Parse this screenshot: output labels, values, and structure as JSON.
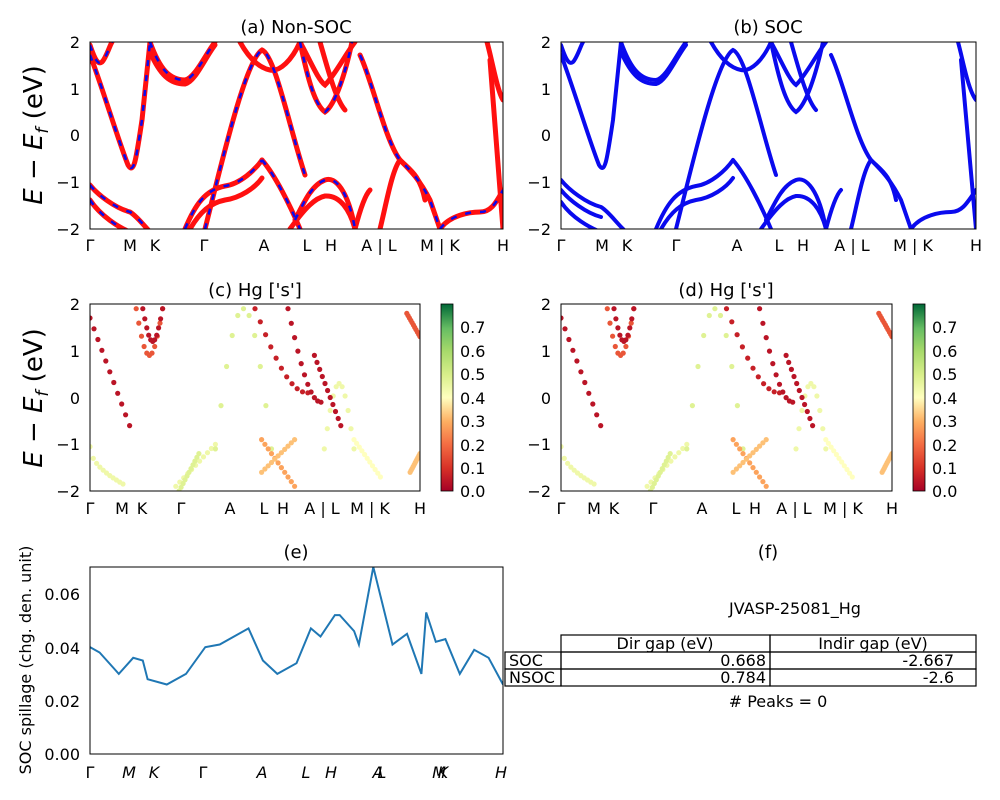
{
  "figure_id": "JVASP-25081_Hg",
  "ylabel_bands": "E − E",
  "ylabel_bands_sub": "f",
  "ylabel_bands_unit": " (eV)",
  "ylabel_spillage": "SOC spillage (chg. den. unit)",
  "kpath_labels": [
    "Γ",
    "M",
    "K",
    "Γ",
    "A",
    "L",
    "H",
    "A | L",
    "M | K",
    "H"
  ],
  "kpath_labels_spill": [
    "Γ",
    "M",
    "K",
    "Γ",
    "A",
    "L",
    "H",
    "A",
    "L",
    "M",
    "K",
    "H"
  ],
  "colorbar_ticks": [
    "0.0",
    "0.1",
    "0.2",
    "0.3",
    "0.4",
    "0.5",
    "0.6",
    "0.7"
  ],
  "colors": {
    "bands_blue": "#0a0aee",
    "bands_red": "#ff1010",
    "spill_line": "#1f77b4"
  },
  "table": {
    "headers": [
      "Dir gap (eV)",
      "Indir gap (eV)"
    ],
    "rows": [
      {
        "label": "SOC",
        "dir": "0.668",
        "indir": "-2.667"
      },
      {
        "label": "NSOC",
        "dir": "0.784",
        "indir": "-2.6"
      }
    ],
    "peaks": "# Peaks = 0"
  },
  "chart_data": [
    {
      "type": "line",
      "title": "(a) Non-SOC",
      "ylabel": "E − E_f (eV)",
      "ylim": [
        -2,
        2
      ],
      "yticks": [
        -2,
        -1,
        0,
        1,
        2
      ],
      "legend": "none",
      "series": [
        {
          "x": [
            0,
            0.4,
            1.0,
            1.3
          ],
          "y": [
            1.9,
            0.8,
            -0.7,
            0.2
          ]
        },
        {
          "x": [
            0,
            0.2,
            0.5,
            1.0,
            1.2,
            1.6,
            2.0,
            2.6,
            3.0
          ],
          "y": [
            -0.9,
            -1.2,
            -1.6,
            -1.8,
            -1.8,
            -2.1,
            -2.0,
            -1.3,
            -1.0
          ]
        },
        {
          "x": [
            2.6,
            3.0,
            3.7,
            4.2,
            4.8,
            5.3
          ],
          "y": [
            -1.4,
            -1.35,
            -1.1,
            -0.8,
            -1.6,
            -2.1
          ]
        },
        {
          "x": [
            3.5,
            4.2,
            4.6,
            5.3,
            5.7
          ],
          "y": [
            -1.0,
            1.9,
            1.0,
            -0.4,
            -1.4
          ]
        },
        {
          "x": [
            5.7,
            6.0,
            6.3,
            6.7
          ],
          "y": [
            -1.1,
            -0.95,
            -0.9,
            -1.05
          ]
        },
        {
          "x": [
            7.0,
            7.4,
            7.8,
            8.2
          ],
          "y": [
            -0.7,
            -0.6,
            -0.8,
            -1.2
          ]
        }
      ]
    },
    {
      "type": "line",
      "title": "(b) SOC",
      "ylim": [
        -2,
        2
      ],
      "yticks": [
        -2,
        -1,
        0,
        1,
        2
      ],
      "legend": "none",
      "series": [
        {
          "x": [
            0,
            0.4,
            1.0,
            1.3
          ],
          "y": [
            1.8,
            0.7,
            -0.8,
            0.2
          ]
        },
        {
          "x": [
            0,
            0.2,
            0.5,
            1.0,
            1.2,
            1.6,
            2.0,
            2.6,
            3.0
          ],
          "y": [
            -0.95,
            -1.3,
            -1.7,
            -1.8,
            -1.85,
            -2.1,
            -2.0,
            -1.3,
            -1.0
          ]
        },
        {
          "x": [
            3.5,
            4.2,
            4.6,
            5.3,
            5.7
          ],
          "y": [
            -1.0,
            1.9,
            1.0,
            -0.4,
            -1.4
          ]
        },
        {
          "x": [
            5.7,
            6.0,
            6.3,
            6.7
          ],
          "y": [
            -1.1,
            -0.95,
            -0.9,
            -1.05
          ]
        }
      ]
    },
    {
      "type": "scatter",
      "title": "(c)  Hg ['s']",
      "ylim": [
        -2,
        2
      ],
      "yticks": [
        -2,
        -1,
        0,
        1,
        2
      ],
      "colorbar_range": [
        0.0,
        0.78
      ],
      "series": [
        {
          "x": [
            0.1,
            0.4,
            0.8,
            1.1
          ],
          "y": [
            1.5,
            0.5,
            -0.6,
            -0.7
          ],
          "c": [
            0.05,
            0.05,
            0.05,
            0.05
          ]
        },
        {
          "x": [
            0.0,
            0.3,
            0.6,
            0.9
          ],
          "y": [
            -1.1,
            -1.5,
            -1.7,
            -1.75
          ],
          "c": [
            0.55,
            0.55,
            0.55,
            0.55
          ]
        },
        {
          "x": [
            2.8,
            3.2,
            3.6,
            4.0
          ],
          "y": [
            -1.2,
            -1.0,
            -0.9,
            -1.0
          ],
          "c": [
            0.6,
            0.6,
            0.6,
            0.6
          ]
        },
        {
          "x": [
            3.8,
            4.2,
            4.6
          ],
          "y": [
            0.5,
            1.9,
            0.8
          ],
          "c": [
            0.5,
            0.7,
            0.5
          ]
        }
      ]
    },
    {
      "type": "scatter",
      "title": "(d) Hg ['s']",
      "ylim": [
        -2,
        2
      ],
      "yticks": [
        -2,
        -1,
        0,
        1,
        2
      ],
      "colorbar_range": [
        0.0,
        0.78
      ],
      "series": [
        {
          "x": [
            0.1,
            0.4,
            0.8,
            1.1
          ],
          "y": [
            1.5,
            0.5,
            -0.6,
            -0.7
          ],
          "c": [
            0.05,
            0.05,
            0.05,
            0.05
          ]
        },
        {
          "x": [
            0.0,
            0.3,
            0.6,
            0.9
          ],
          "y": [
            -1.1,
            -1.5,
            -1.7,
            -1.75
          ],
          "c": [
            0.55,
            0.55,
            0.55,
            0.55
          ]
        },
        {
          "x": [
            2.8,
            3.2,
            3.6,
            4.0
          ],
          "y": [
            -1.2,
            -1.0,
            -0.9,
            -1.0
          ],
          "c": [
            0.6,
            0.6,
            0.6,
            0.6
          ]
        }
      ]
    },
    {
      "type": "line",
      "title": "(e)",
      "ylabel": "SOC spillage (chg. den. unit)",
      "ylim": [
        0.0,
        0.07
      ],
      "yticks": [
        "0.00",
        "0.02",
        "0.04",
        "0.06"
      ],
      "series": [
        {
          "name": "",
          "x": [
            0,
            0.2,
            0.5,
            0.6,
            0.9,
            1.1,
            1.2,
            1.6,
            2.0,
            2.4,
            2.7,
            3.3,
            3.6,
            3.9,
            4.3,
            4.6,
            4.8,
            5.1,
            5.2,
            5.5,
            5.6,
            5.9,
            6.3,
            6.6,
            6.9,
            7.0,
            7.2,
            7.4,
            7.7,
            8.0,
            8.3,
            8.6
          ],
          "y": [
            0.04,
            0.038,
            0.032,
            0.03,
            0.036,
            0.035,
            0.028,
            0.026,
            0.03,
            0.04,
            0.041,
            0.047,
            0.035,
            0.03,
            0.034,
            0.047,
            0.044,
            0.052,
            0.052,
            0.046,
            0.041,
            0.07,
            0.041,
            0.045,
            0.03,
            0.053,
            0.042,
            0.043,
            0.03,
            0.039,
            0.036,
            0.026
          ]
        }
      ]
    }
  ]
}
